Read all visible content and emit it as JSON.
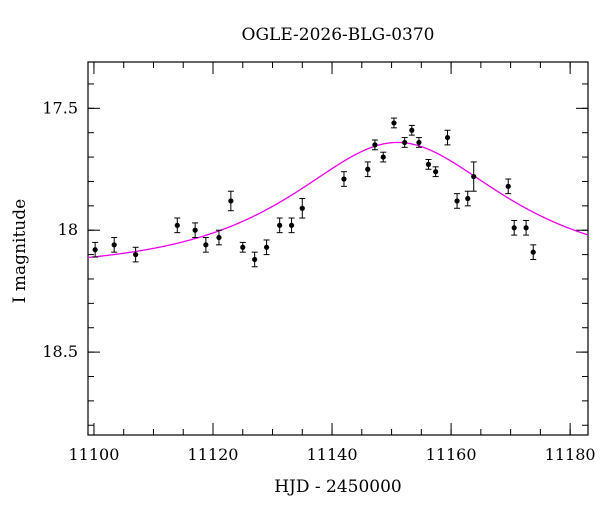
{
  "chart_data": {
    "type": "scatter",
    "title": "OGLE-2026-BLG-0370",
    "xlabel": "HJD - 2450000",
    "ylabel": "I magnitude",
    "xlim": [
      11099,
      11183
    ],
    "ylim": [
      18.84,
      17.31
    ],
    "y_inverted": true,
    "x_ticks": [
      11100,
      11120,
      11140,
      11160,
      11180
    ],
    "x_tick_labels": [
      "11100",
      "11120",
      "11140",
      "11160",
      "11180"
    ],
    "y_ticks": [
      17.5,
      18,
      18.5
    ],
    "y_tick_labels": [
      "17.5",
      "18",
      "18.5"
    ],
    "x_minor_step": 5,
    "y_minor_step": 0.1,
    "grid": false,
    "series": [
      {
        "kind": "errorbar-points",
        "color": "#000000",
        "points": [
          {
            "x": 11100.2,
            "y": 18.08,
            "err": 0.03
          },
          {
            "x": 11103.4,
            "y": 18.06,
            "err": 0.03
          },
          {
            "x": 11107.0,
            "y": 18.1,
            "err": 0.03
          },
          {
            "x": 11114.0,
            "y": 17.98,
            "err": 0.03
          },
          {
            "x": 11117.0,
            "y": 18.0,
            "err": 0.03
          },
          {
            "x": 11118.8,
            "y": 18.06,
            "err": 0.03
          },
          {
            "x": 11121.0,
            "y": 18.03,
            "err": 0.03
          },
          {
            "x": 11123.0,
            "y": 17.88,
            "err": 0.04
          },
          {
            "x": 11125.0,
            "y": 18.07,
            "err": 0.02
          },
          {
            "x": 11127.0,
            "y": 18.12,
            "err": 0.03
          },
          {
            "x": 11129.0,
            "y": 18.07,
            "err": 0.03
          },
          {
            "x": 11131.2,
            "y": 17.98,
            "err": 0.03
          },
          {
            "x": 11133.2,
            "y": 17.98,
            "err": 0.03
          },
          {
            "x": 11135.0,
            "y": 17.91,
            "err": 0.04
          },
          {
            "x": 11142.0,
            "y": 17.79,
            "err": 0.03
          },
          {
            "x": 11146.0,
            "y": 17.75,
            "err": 0.03
          },
          {
            "x": 11147.2,
            "y": 17.65,
            "err": 0.02
          },
          {
            "x": 11148.6,
            "y": 17.7,
            "err": 0.02
          },
          {
            "x": 11150.4,
            "y": 17.56,
            "err": 0.02
          },
          {
            "x": 11152.2,
            "y": 17.64,
            "err": 0.02
          },
          {
            "x": 11153.4,
            "y": 17.59,
            "err": 0.02
          },
          {
            "x": 11154.6,
            "y": 17.64,
            "err": 0.02
          },
          {
            "x": 11156.2,
            "y": 17.73,
            "err": 0.02
          },
          {
            "x": 11157.4,
            "y": 17.76,
            "err": 0.02
          },
          {
            "x": 11159.4,
            "y": 17.62,
            "err": 0.03
          },
          {
            "x": 11161.0,
            "y": 17.88,
            "err": 0.03
          },
          {
            "x": 11162.8,
            "y": 17.87,
            "err": 0.03
          },
          {
            "x": 11163.8,
            "y": 17.78,
            "err": 0.06
          },
          {
            "x": 11169.6,
            "y": 17.82,
            "err": 0.03
          },
          {
            "x": 11170.6,
            "y": 17.99,
            "err": 0.03
          },
          {
            "x": 11172.6,
            "y": 17.99,
            "err": 0.03
          },
          {
            "x": 11173.8,
            "y": 18.09,
            "err": 0.03
          }
        ]
      },
      {
        "kind": "model-curve",
        "color": "#ee00ee",
        "model": "single-lens",
        "t0": 11151.0,
        "tE": 25.0,
        "u0": 0.74,
        "baseline_mag": 18.16,
        "x_range": [
          11099,
          11183
        ]
      }
    ]
  }
}
